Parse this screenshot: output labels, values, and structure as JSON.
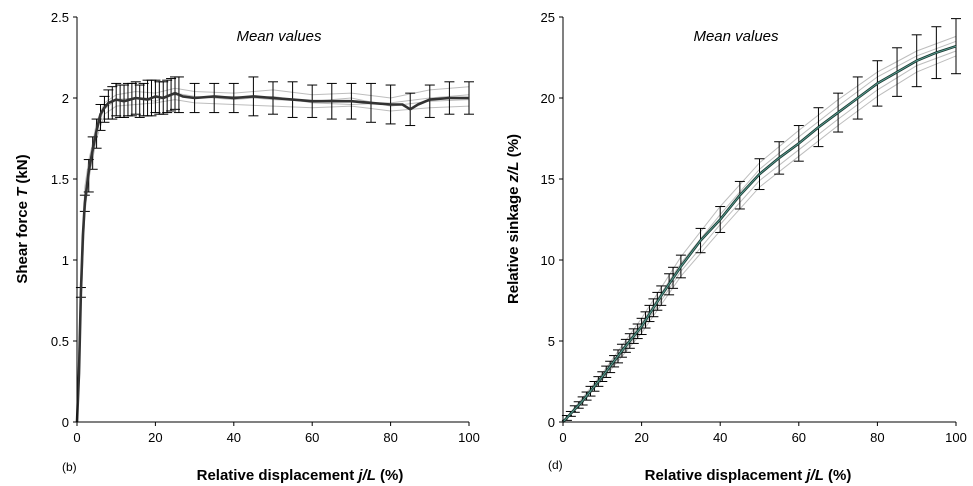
{
  "chart_data": [
    {
      "type": "line",
      "panel_label": "(b)",
      "annotation": "Mean values",
      "xlabel_parts": [
        "Relative displacement ",
        "j/L",
        " (%)"
      ],
      "ylabel_parts": [
        "Shear force ",
        "T",
        " (kN)"
      ],
      "xlim": [
        0,
        100
      ],
      "ylim": [
        0,
        2.5
      ],
      "xticks": [
        "0",
        "20",
        "40",
        "60",
        "80",
        "100"
      ],
      "yticks": [
        "0",
        "0.5",
        "1",
        "1.5",
        "2",
        "2.5"
      ],
      "grid": false,
      "colors": {
        "mean": "#333333",
        "runs": "#bdbdbd"
      },
      "mean": {
        "x": [
          0,
          0.5,
          1,
          1.5,
          2,
          3,
          4,
          5,
          6,
          7,
          8,
          10,
          12,
          15,
          18,
          20,
          22,
          25,
          27,
          30,
          35,
          40,
          45,
          50,
          55,
          60,
          65,
          70,
          75,
          80,
          83,
          85,
          87,
          90,
          95,
          100
        ],
        "y": [
          0,
          0.3,
          0.8,
          1.15,
          1.35,
          1.55,
          1.68,
          1.8,
          1.9,
          1.94,
          1.97,
          1.99,
          1.98,
          2.0,
          1.99,
          2.01,
          2.0,
          2.03,
          2.01,
          2.0,
          2.01,
          2.0,
          2.01,
          2.0,
          1.99,
          1.98,
          1.98,
          1.98,
          1.97,
          1.96,
          1.96,
          1.93,
          1.96,
          1.99,
          2.0,
          2.0
        ]
      },
      "runs": [
        {
          "x": [
            0,
            1,
            2,
            3,
            5,
            7,
            10,
            15,
            20,
            25,
            30,
            40,
            50,
            60,
            70,
            80,
            90,
            100
          ],
          "y": [
            0,
            0.85,
            1.4,
            1.6,
            1.85,
            1.97,
            2.02,
            2.04,
            2.03,
            2.06,
            2.04,
            2.03,
            2.05,
            2.02,
            2.03,
            2.0,
            2.05,
            2.07
          ]
        },
        {
          "x": [
            0,
            1,
            2,
            3,
            5,
            7,
            10,
            15,
            20,
            25,
            30,
            40,
            50,
            60,
            70,
            80,
            90,
            100
          ],
          "y": [
            0,
            0.75,
            1.3,
            1.5,
            1.75,
            1.9,
            1.95,
            1.96,
            1.97,
            1.99,
            1.97,
            1.96,
            1.95,
            1.94,
            1.95,
            1.92,
            1.94,
            1.95
          ]
        },
        {
          "x": [
            0,
            1,
            2,
            3,
            5,
            7,
            10,
            15,
            20,
            25,
            30,
            40,
            50,
            60,
            70,
            80,
            90,
            100
          ],
          "y": [
            0,
            0.9,
            1.45,
            1.62,
            1.82,
            1.93,
            1.99,
            2.0,
            2.0,
            2.02,
            2.0,
            2.01,
            1.99,
            1.98,
            2.0,
            1.95,
            1.98,
            1.99
          ]
        },
        {
          "x": [
            0,
            1,
            2,
            3,
            5,
            7,
            10,
            15,
            20,
            25,
            30,
            40,
            50,
            60,
            70,
            80,
            90,
            100
          ],
          "y": [
            0,
            0.7,
            1.28,
            1.52,
            1.78,
            1.95,
            1.99,
            2.0,
            1.98,
            2.03,
            2.01,
            1.99,
            2.01,
            1.97,
            1.96,
            1.97,
            2.0,
            2.02
          ]
        }
      ],
      "errorbars": {
        "x": [
          1,
          2,
          3,
          4,
          5,
          6,
          7,
          8,
          9,
          10,
          11,
          12,
          13,
          14,
          15,
          16,
          17,
          18,
          19,
          20,
          21,
          22,
          23,
          24,
          25,
          26,
          30,
          35,
          40,
          45,
          50,
          55,
          60,
          65,
          70,
          75,
          80,
          85,
          90,
          95,
          100
        ],
        "y": [
          0.8,
          1.35,
          1.52,
          1.66,
          1.78,
          1.88,
          1.93,
          1.96,
          1.97,
          1.99,
          1.98,
          1.98,
          1.99,
          1.99,
          2.0,
          1.98,
          1.99,
          2.0,
          2.0,
          2.01,
          2.0,
          2.0,
          2.01,
          2.02,
          2.03,
          2.02,
          2.0,
          2.0,
          2.0,
          2.01,
          2.0,
          1.99,
          1.98,
          1.98,
          1.98,
          1.97,
          1.96,
          1.93,
          1.98,
          2.0,
          2.0
        ],
        "err": [
          0.03,
          0.05,
          0.1,
          0.1,
          0.09,
          0.08,
          0.08,
          0.09,
          0.1,
          0.1,
          0.1,
          0.1,
          0.1,
          0.1,
          0.1,
          0.1,
          0.1,
          0.11,
          0.11,
          0.1,
          0.1,
          0.1,
          0.1,
          0.1,
          0.1,
          0.11,
          0.09,
          0.09,
          0.09,
          0.12,
          0.1,
          0.11,
          0.1,
          0.11,
          0.11,
          0.12,
          0.12,
          0.1,
          0.1,
          0.1,
          0.1
        ]
      }
    },
    {
      "type": "line",
      "panel_label": "(d)",
      "annotation": "Mean values",
      "xlabel_parts": [
        "Relative displacement ",
        "j/L",
        " (%)"
      ],
      "ylabel_parts": [
        "Relative sinkage  ",
        "z/L",
        " (%)"
      ],
      "xlim": [
        0,
        100
      ],
      "ylim": [
        0,
        25
      ],
      "xticks": [
        "0",
        "20",
        "40",
        "60",
        "80",
        "100"
      ],
      "yticks": [
        "0",
        "5",
        "10",
        "15",
        "20",
        "25"
      ],
      "grid": false,
      "colors": {
        "mean": "#1d3b34",
        "highlight": "#5fa89c",
        "runs": "#bdbdbd"
      },
      "mean": {
        "x": [
          0,
          5,
          10,
          15,
          20,
          25,
          30,
          35,
          40,
          45,
          50,
          55,
          60,
          65,
          70,
          75,
          80,
          85,
          90,
          95,
          100
        ],
        "y": [
          0,
          1.3,
          2.8,
          4.4,
          5.9,
          7.8,
          9.6,
          11.2,
          12.5,
          14.0,
          15.3,
          16.3,
          17.2,
          18.2,
          19.1,
          20.0,
          20.9,
          21.6,
          22.3,
          22.8,
          23.2
        ]
      },
      "runs": [
        {
          "x": [
            0,
            10,
            20,
            30,
            40,
            50,
            60,
            70,
            80,
            90,
            100
          ],
          "y": [
            0,
            3.0,
            6.4,
            10.2,
            13.3,
            16.0,
            18.0,
            19.9,
            21.6,
            22.9,
            23.8
          ]
        },
        {
          "x": [
            0,
            10,
            20,
            30,
            40,
            50,
            60,
            70,
            80,
            90,
            100
          ],
          "y": [
            0,
            2.6,
            5.5,
            9.0,
            11.8,
            14.5,
            16.4,
            18.3,
            20.1,
            21.6,
            22.6
          ]
        },
        {
          "x": [
            0,
            10,
            20,
            30,
            40,
            50,
            60,
            70,
            80,
            90,
            100
          ],
          "y": [
            0,
            2.9,
            6.1,
            9.8,
            12.8,
            15.6,
            17.6,
            19.5,
            21.3,
            22.6,
            23.5
          ]
        },
        {
          "x": [
            0,
            10,
            20,
            30,
            40,
            50,
            60,
            70,
            80,
            90,
            100
          ],
          "y": [
            0,
            2.7,
            5.7,
            9.3,
            12.2,
            14.9,
            16.8,
            18.7,
            20.5,
            22.0,
            22.9
          ]
        }
      ],
      "errorbars": {
        "x": [
          1,
          2,
          3,
          4,
          5,
          6,
          7,
          8,
          9,
          10,
          11,
          12,
          13,
          14,
          15,
          16,
          17,
          18,
          19,
          20,
          21,
          22,
          23,
          24,
          25,
          27,
          28,
          30,
          35,
          40,
          45,
          50,
          55,
          60,
          65,
          70,
          75,
          80,
          85,
          90,
          95,
          100
        ],
        "y": [
          0.25,
          0.5,
          0.8,
          1.05,
          1.3,
          1.6,
          1.9,
          2.2,
          2.5,
          2.8,
          3.1,
          3.4,
          3.75,
          4.05,
          4.4,
          4.7,
          5.0,
          5.3,
          5.6,
          5.9,
          6.3,
          6.7,
          7.05,
          7.45,
          7.8,
          8.5,
          8.9,
          9.6,
          11.2,
          12.5,
          14.0,
          15.3,
          16.3,
          17.2,
          18.2,
          19.1,
          20.0,
          20.9,
          21.6,
          22.3,
          22.8,
          23.2
        ],
        "err": [
          0.15,
          0.15,
          0.2,
          0.2,
          0.25,
          0.25,
          0.3,
          0.3,
          0.3,
          0.3,
          0.35,
          0.35,
          0.35,
          0.4,
          0.4,
          0.4,
          0.45,
          0.45,
          0.45,
          0.5,
          0.5,
          0.5,
          0.55,
          0.55,
          0.6,
          0.65,
          0.65,
          0.7,
          0.75,
          0.8,
          0.85,
          0.95,
          1.0,
          1.1,
          1.2,
          1.2,
          1.3,
          1.4,
          1.5,
          1.6,
          1.6,
          1.7
        ]
      }
    }
  ]
}
